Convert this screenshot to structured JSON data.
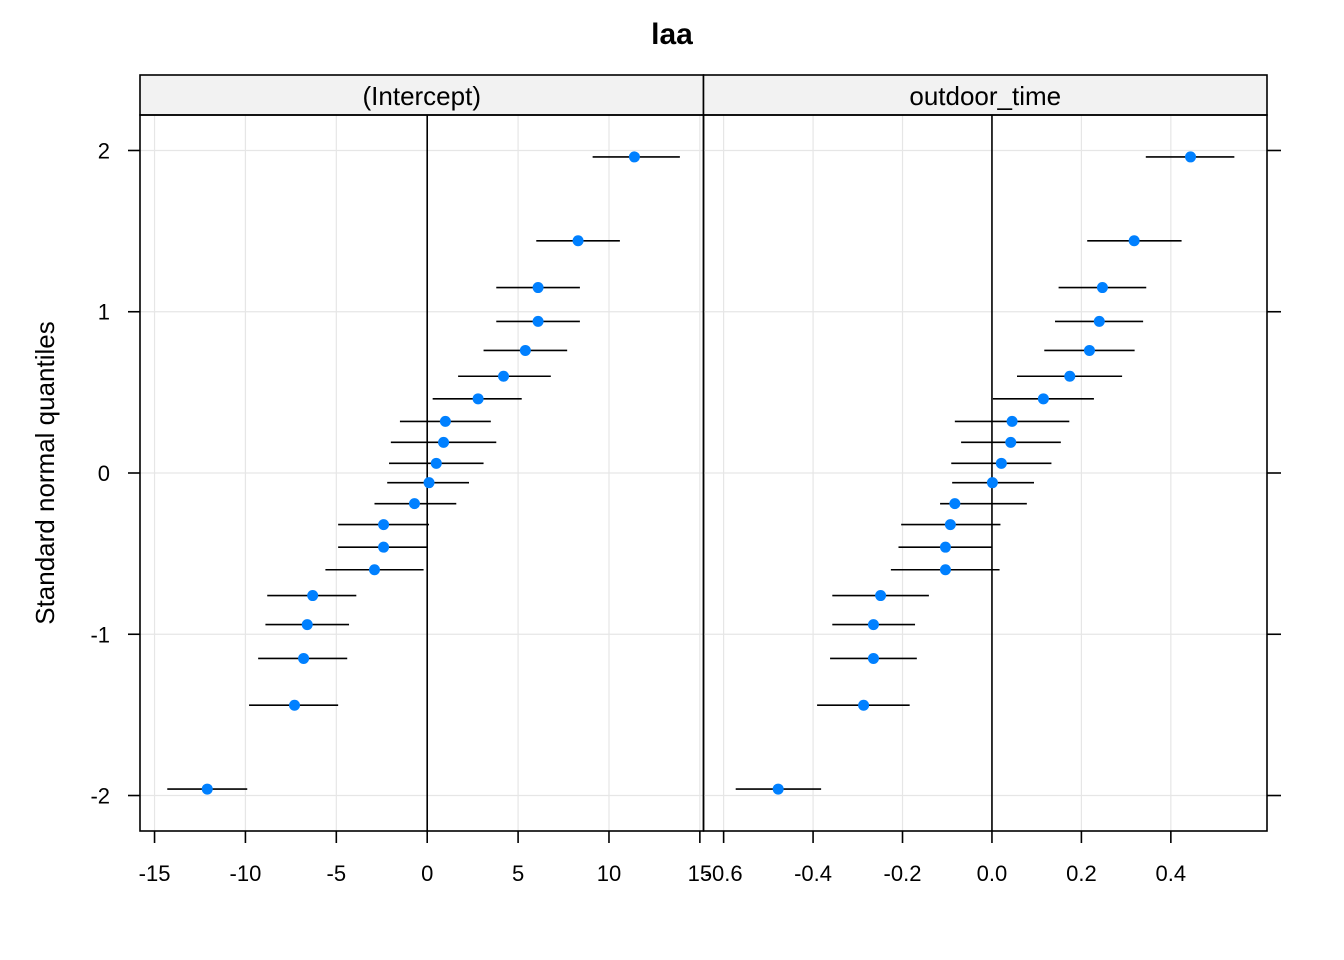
{
  "chart_data": {
    "type": "scatter",
    "title": "laa",
    "ylabel": "Standard normal quantiles",
    "xlabel": "",
    "grid": true,
    "y_ticks": [
      "2",
      "1",
      "0",
      "-1",
      "-2"
    ],
    "y_tick_values": [
      2,
      1,
      0,
      -1,
      -2
    ],
    "ylim": [
      -2.22,
      2.22
    ],
    "marker_color": "#0080ff",
    "panels": [
      {
        "strip": "(Intercept)",
        "xlim": [
          -15.8,
          15.2
        ],
        "x_ticks": [
          "-15",
          "-10",
          "-5",
          "0",
          "5",
          "10",
          "15"
        ],
        "x_tick_values": [
          -15,
          -10,
          -5,
          0,
          5,
          10,
          15
        ],
        "points": [
          {
            "q": 1.96,
            "est": 11.4,
            "lo": 9.1,
            "hi": 13.9
          },
          {
            "q": 1.44,
            "est": 8.3,
            "lo": 6.0,
            "hi": 10.6
          },
          {
            "q": 1.15,
            "est": 6.1,
            "lo": 3.8,
            "hi": 8.4
          },
          {
            "q": 0.94,
            "est": 6.1,
            "lo": 3.8,
            "hi": 8.4
          },
          {
            "q": 0.76,
            "est": 5.4,
            "lo": 3.1,
            "hi": 7.7
          },
          {
            "q": 0.6,
            "est": 4.2,
            "lo": 1.7,
            "hi": 6.8
          },
          {
            "q": 0.46,
            "est": 2.8,
            "lo": 0.3,
            "hi": 5.2
          },
          {
            "q": 0.32,
            "est": 1.0,
            "lo": -1.5,
            "hi": 3.5
          },
          {
            "q": 0.19,
            "est": 0.9,
            "lo": -2.0,
            "hi": 3.8
          },
          {
            "q": 0.06,
            "est": 0.5,
            "lo": -2.1,
            "hi": 3.1
          },
          {
            "q": -0.06,
            "est": 0.1,
            "lo": -2.2,
            "hi": 2.3
          },
          {
            "q": -0.19,
            "est": -0.7,
            "lo": -2.9,
            "hi": 1.6
          },
          {
            "q": -0.32,
            "est": -2.4,
            "lo": -4.9,
            "hi": 0.1
          },
          {
            "q": -0.46,
            "est": -2.4,
            "lo": -4.9,
            "hi": 0.0
          },
          {
            "q": -0.6,
            "est": -2.9,
            "lo": -5.6,
            "hi": -0.2
          },
          {
            "q": -0.76,
            "est": -6.3,
            "lo": -8.8,
            "hi": -3.9
          },
          {
            "q": -0.94,
            "est": -6.6,
            "lo": -8.9,
            "hi": -4.3
          },
          {
            "q": -1.15,
            "est": -6.8,
            "lo": -9.3,
            "hi": -4.4
          },
          {
            "q": -1.44,
            "est": -7.3,
            "lo": -9.8,
            "hi": -4.9
          },
          {
            "q": -1.96,
            "est": -12.1,
            "lo": -14.3,
            "hi": -9.9
          }
        ]
      },
      {
        "strip": "outdoor_time",
        "xlim": [
          -0.645,
          0.615
        ],
        "x_ticks": [
          "-0.6",
          "-0.4",
          "-0.2",
          "0.0",
          "0.2",
          "0.4"
        ],
        "x_tick_values": [
          -0.6,
          -0.4,
          -0.2,
          0.0,
          0.2,
          0.4
        ],
        "points": [
          {
            "q": 1.96,
            "est": 0.444,
            "lo": 0.344,
            "hi": 0.542
          },
          {
            "q": 1.44,
            "est": 0.318,
            "lo": 0.213,
            "hi": 0.424
          },
          {
            "q": 1.15,
            "est": 0.247,
            "lo": 0.149,
            "hi": 0.345
          },
          {
            "q": 0.94,
            "est": 0.24,
            "lo": 0.141,
            "hi": 0.338
          },
          {
            "q": 0.76,
            "est": 0.218,
            "lo": 0.117,
            "hi": 0.319
          },
          {
            "q": 0.6,
            "est": 0.174,
            "lo": 0.056,
            "hi": 0.291
          },
          {
            "q": 0.46,
            "est": 0.115,
            "lo": 0.002,
            "hi": 0.228
          },
          {
            "q": 0.32,
            "est": 0.045,
            "lo": -0.083,
            "hi": 0.173
          },
          {
            "q": 0.19,
            "est": 0.042,
            "lo": -0.069,
            "hi": 0.154
          },
          {
            "q": 0.06,
            "est": 0.021,
            "lo": -0.091,
            "hi": 0.133
          },
          {
            "q": -0.06,
            "est": 0.001,
            "lo": -0.089,
            "hi": 0.094
          },
          {
            "q": -0.19,
            "est": -0.083,
            "lo": -0.116,
            "hi": 0.078
          },
          {
            "q": -0.32,
            "est": -0.093,
            "lo": -0.203,
            "hi": 0.019
          },
          {
            "q": -0.46,
            "est": -0.104,
            "lo": -0.209,
            "hi": 0.001
          },
          {
            "q": -0.6,
            "est": -0.104,
            "lo": -0.226,
            "hi": 0.017
          },
          {
            "q": -0.76,
            "est": -0.249,
            "lo": -0.357,
            "hi": -0.141
          },
          {
            "q": -0.94,
            "est": -0.265,
            "lo": -0.357,
            "hi": -0.172
          },
          {
            "q": -1.15,
            "est": -0.265,
            "lo": -0.362,
            "hi": -0.168
          },
          {
            "q": -1.44,
            "est": -0.287,
            "lo": -0.391,
            "hi": -0.184
          },
          {
            "q": -1.96,
            "est": -0.478,
            "lo": -0.573,
            "hi": -0.382
          }
        ]
      }
    ]
  }
}
